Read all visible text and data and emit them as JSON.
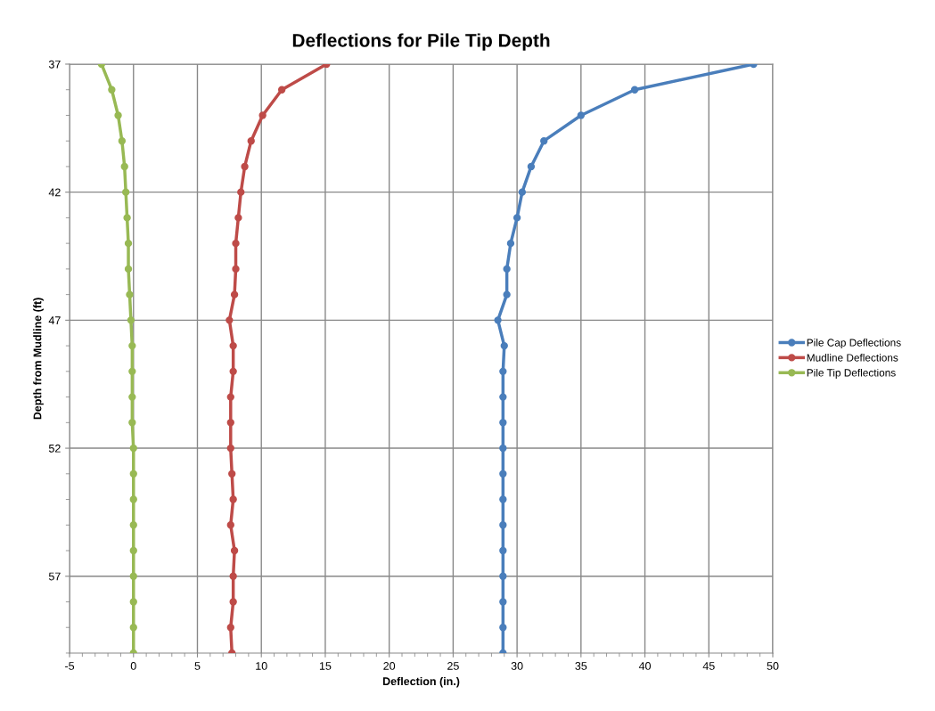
{
  "chart_data": {
    "type": "line",
    "title": "Deflections for Pile Tip Depth",
    "xlabel": "Deflection (in.)",
    "ylabel": "Depth from Mudline (ft)",
    "series": [
      {
        "name": "Pile Cap Deflections",
        "color": "#4a7ebb",
        "x": [
          48.5,
          39.2,
          35.0,
          32.1,
          31.1,
          30.4,
          30.0,
          29.5,
          29.2,
          29.2,
          28.5,
          29.0,
          28.9,
          28.9,
          28.9,
          28.9,
          28.9,
          28.9,
          28.9,
          28.9,
          28.9,
          28.9,
          28.9,
          28.9
        ],
        "values": [
          37,
          38,
          39,
          40,
          41,
          42,
          43,
          44,
          45,
          46,
          47,
          48,
          49,
          50,
          51,
          52,
          53,
          54,
          55,
          56,
          57,
          58,
          59,
          60
        ]
      },
      {
        "name": "Mudline Deflections",
        "color": "#be4b48",
        "x": [
          15.1,
          11.6,
          10.1,
          9.2,
          8.7,
          8.4,
          8.2,
          8.0,
          8.0,
          7.9,
          7.5,
          7.8,
          7.8,
          7.6,
          7.6,
          7.6,
          7.7,
          7.8,
          7.6,
          7.9,
          7.8,
          7.8,
          7.6,
          7.7
        ],
        "values": [
          37,
          38,
          39,
          40,
          41,
          42,
          43,
          44,
          45,
          46,
          47,
          48,
          49,
          50,
          51,
          52,
          53,
          54,
          55,
          56,
          57,
          58,
          59,
          60
        ]
      },
      {
        "name": "Pile Tip Deflections",
        "color": "#98b954",
        "x": [
          -2.5,
          -1.7,
          -1.2,
          -0.9,
          -0.7,
          -0.6,
          -0.5,
          -0.4,
          -0.4,
          -0.3,
          -0.2,
          -0.1,
          -0.1,
          -0.1,
          -0.1,
          0.0,
          0.0,
          0.0,
          0.0,
          0.0,
          0.0,
          0.0,
          0.0,
          0.0
        ],
        "values": [
          37,
          38,
          39,
          40,
          41,
          42,
          43,
          44,
          45,
          46,
          47,
          48,
          49,
          50,
          51,
          52,
          53,
          54,
          55,
          56,
          57,
          58,
          59,
          60
        ]
      }
    ],
    "xlim": [
      -5,
      50
    ],
    "xticks": [
      -5,
      0,
      5,
      10,
      15,
      20,
      25,
      30,
      35,
      40,
      45,
      50
    ],
    "ylim": [
      60,
      37
    ],
    "yticks": [
      37,
      42,
      47,
      52,
      57
    ],
    "grid": true,
    "legend": "right",
    "marker": "circle",
    "line_style": "solid"
  }
}
